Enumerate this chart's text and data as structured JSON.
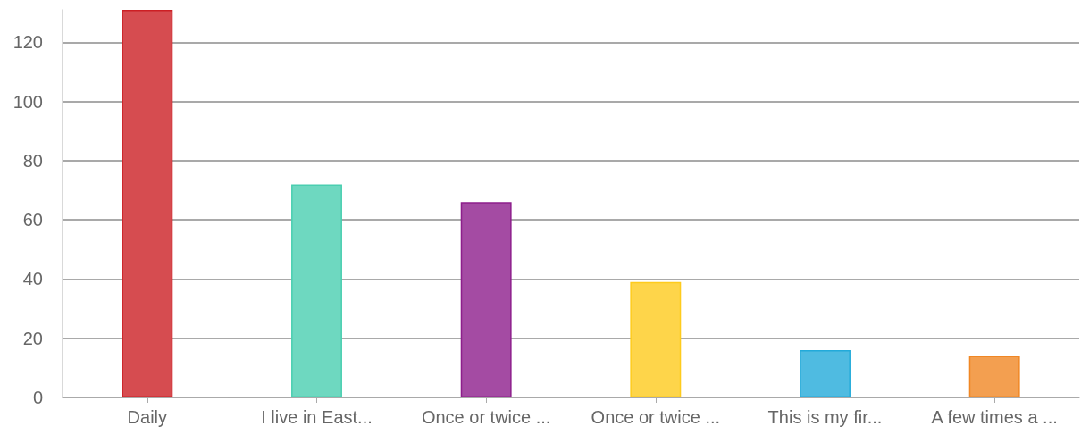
{
  "chart_data": {
    "type": "bar",
    "categories": [
      "Daily",
      "I live in East...",
      "Once or twice ...",
      "Once or twice ...",
      "This is my fir...",
      "A few times a ..."
    ],
    "values": [
      131,
      72,
      66,
      39,
      16,
      14
    ],
    "colors": [
      "#d64c50",
      "#6ed8c0",
      "#a44ba3",
      "#fed54a",
      "#4fbbe1",
      "#f39f50"
    ],
    "ylim": [
      0,
      131
    ],
    "yticks": [
      0,
      20,
      40,
      60,
      80,
      100,
      120
    ],
    "grid": "y"
  }
}
